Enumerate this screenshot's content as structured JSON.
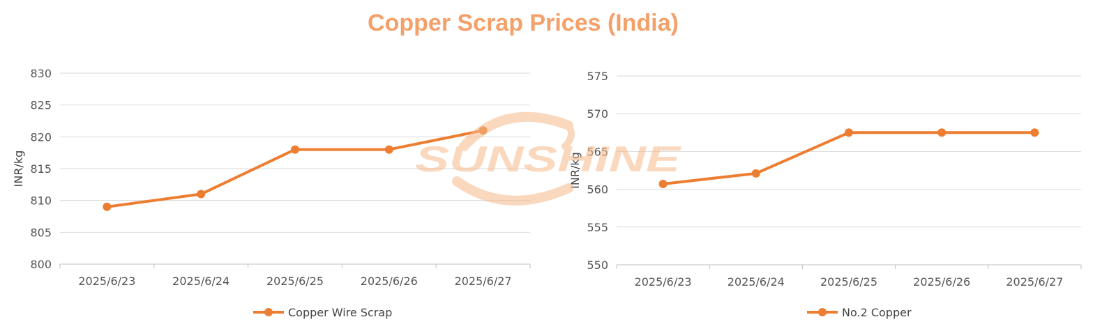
{
  "page": {
    "title": "Copper Scrap Prices (India)",
    "watermark_text": "SUNSHINE",
    "colors": {
      "title": "#f4a068",
      "series": "#ed7d31",
      "grid": "#d9d9d9",
      "watermark": "#f6b98a"
    }
  },
  "chart_data": [
    {
      "type": "line",
      "x": [
        "2025/6/23",
        "2025/6/24",
        "2025/6/25",
        "2025/6/26",
        "2025/6/27"
      ],
      "series": [
        {
          "name": "Copper Wire Scrap",
          "values": [
            809,
            811,
            818,
            818,
            821
          ]
        }
      ],
      "ylabel": "INR/kg",
      "xlabel": "",
      "ylim": [
        800,
        830
      ],
      "yticks": [
        800,
        805,
        810,
        815,
        820,
        825,
        830
      ],
      "grid": true,
      "legend": "bottom-center"
    },
    {
      "type": "line",
      "x": [
        "2025/6/23",
        "2025/6/24",
        "2025/6/25",
        "2025/6/26",
        "2025/6/27"
      ],
      "series": [
        {
          "name": "No.2 Copper",
          "values": [
            560.7,
            562.1,
            567.5,
            567.5,
            567.5
          ]
        }
      ],
      "ylabel": "INR/kg",
      "xlabel": "",
      "ylim": [
        550,
        575
      ],
      "yticks": [
        550,
        555,
        560,
        565,
        570,
        575
      ],
      "grid": true,
      "legend": "bottom-center"
    }
  ]
}
